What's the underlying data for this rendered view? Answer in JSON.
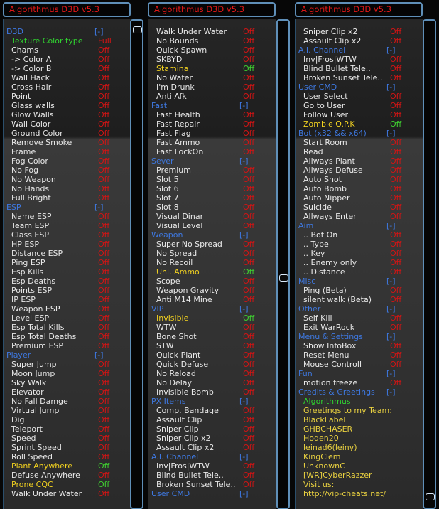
{
  "title": "Algorithmus D3D v5.3",
  "columns": [
    {
      "rows": [
        {
          "label": "D3D",
          "value": "[-]",
          "kind": "sec"
        },
        {
          "label": "Texture Color type",
          "value": "Full",
          "kind": "gr"
        },
        {
          "label": "Chams",
          "value": "Off"
        },
        {
          "label": "-> Color A",
          "value": "Off"
        },
        {
          "label": "-> Color B",
          "value": "Off"
        },
        {
          "label": "Wall Hack",
          "value": "Off"
        },
        {
          "label": "Cross Hair",
          "value": "Off"
        },
        {
          "label": "Point",
          "value": "Off"
        },
        {
          "label": "Glass walls",
          "value": "Off"
        },
        {
          "label": "Glow Walls",
          "value": "Off"
        },
        {
          "label": "Wall Color",
          "value": "Off"
        },
        {
          "label": "Ground Color",
          "value": "Off"
        },
        {
          "label": "Remove Smoke",
          "value": "Off"
        },
        {
          "label": "Frame",
          "value": "Off"
        },
        {
          "label": "Fog Color",
          "value": "Off"
        },
        {
          "label": "No Fog",
          "value": "Off"
        },
        {
          "label": "No Weapon",
          "value": "Off"
        },
        {
          "label": "No Hands",
          "value": "Off"
        },
        {
          "label": "Full Bright",
          "value": "Off"
        },
        {
          "label": "ESP",
          "value": "[-]",
          "kind": "sec"
        },
        {
          "label": "Name ESP",
          "value": "Off"
        },
        {
          "label": "Team ESP",
          "value": "Off"
        },
        {
          "label": "Class ESP",
          "value": "Off"
        },
        {
          "label": "HP ESP",
          "value": "Off"
        },
        {
          "label": "Distance ESP",
          "value": "Off"
        },
        {
          "label": "Ping ESP",
          "value": "Off"
        },
        {
          "label": "Esp Kills",
          "value": "Off"
        },
        {
          "label": "Esp Deaths",
          "value": "Off"
        },
        {
          "label": "Points ESP",
          "value": "Off"
        },
        {
          "label": "IP ESP",
          "value": "Off"
        },
        {
          "label": "Weapon ESP",
          "value": "Off"
        },
        {
          "label": "Level ESP",
          "value": "Off"
        },
        {
          "label": "Esp Total Kills",
          "value": "Off"
        },
        {
          "label": "Esp Total Deaths",
          "value": "Off"
        },
        {
          "label": "Premium ESP",
          "value": "Off"
        },
        {
          "label": "Player",
          "value": "[-]",
          "kind": "sec"
        },
        {
          "label": "Super Jump",
          "value": "Off"
        },
        {
          "label": "Moon Jump",
          "value": "Off"
        },
        {
          "label": "Sky Walk",
          "value": "Off"
        },
        {
          "label": "Elevator",
          "value": "Off"
        },
        {
          "label": "No Fall Damge",
          "value": "Off"
        },
        {
          "label": "Virtual Jump",
          "value": "Off"
        },
        {
          "label": "Dig",
          "value": "Off"
        },
        {
          "label": "Teleport",
          "value": "Off"
        },
        {
          "label": "Speed",
          "value": "Off"
        },
        {
          "label": "Sprint Speed",
          "value": "Off"
        },
        {
          "label": "Roll Speed",
          "value": "Off"
        },
        {
          "label": "Plant Anywhere",
          "value": "Off",
          "kind": "on"
        },
        {
          "label": "Defuse Anywhere",
          "value": "Off"
        },
        {
          "label": "Prone CQC",
          "value": "Off",
          "kind": "on"
        },
        {
          "label": "Walk Under Water",
          "value": "Off"
        }
      ]
    },
    {
      "rows": [
        {
          "label": "Walk Under Water",
          "value": "Off"
        },
        {
          "label": "No Bounds",
          "value": "Off"
        },
        {
          "label": "Quick Spawn",
          "value": "Off"
        },
        {
          "label": "SKBYD",
          "value": "Off"
        },
        {
          "label": "Stamina",
          "value": "Off",
          "kind": "on"
        },
        {
          "label": "No Water",
          "value": "Off"
        },
        {
          "label": "I'm Drunk",
          "value": "Off"
        },
        {
          "label": "Anti Afk",
          "value": "Off"
        },
        {
          "label": "Fast",
          "value": "[-]",
          "kind": "sec"
        },
        {
          "label": "Fast Health",
          "value": "Off"
        },
        {
          "label": "Fast Repair",
          "value": "Off"
        },
        {
          "label": "Fast Flag",
          "value": "Off"
        },
        {
          "label": "Fast Ammo",
          "value": "Off"
        },
        {
          "label": "Fast LockOn",
          "value": "Off"
        },
        {
          "label": "Sever",
          "value": "[-]",
          "kind": "sec"
        },
        {
          "label": "Premium",
          "value": "Off"
        },
        {
          "label": "Slot 5",
          "value": "Off"
        },
        {
          "label": "Slot 6",
          "value": "Off"
        },
        {
          "label": "Slot 7",
          "value": "Off"
        },
        {
          "label": "Slot 8",
          "value": "Off"
        },
        {
          "label": "Visual Dinar",
          "value": "Off"
        },
        {
          "label": "Visual Level",
          "value": "Off"
        },
        {
          "label": "Weapon",
          "value": "[-]",
          "kind": "sec"
        },
        {
          "label": "Super No Spread",
          "value": "Off"
        },
        {
          "label": "No Spread",
          "value": "Off"
        },
        {
          "label": "No Recoil",
          "value": "Off"
        },
        {
          "label": "Unl. Ammo",
          "value": "Off",
          "kind": "on"
        },
        {
          "label": "Scope",
          "value": "Off"
        },
        {
          "label": "Weapon Gravity",
          "value": "Off"
        },
        {
          "label": "Anti M14 Mine",
          "value": "Off"
        },
        {
          "label": "VIP",
          "value": "[-]",
          "kind": "sec"
        },
        {
          "label": "Invisible",
          "value": "Off",
          "kind": "on"
        },
        {
          "label": "WTW",
          "value": "Off"
        },
        {
          "label": "Bone Shot",
          "value": "Off"
        },
        {
          "label": "STW",
          "value": "Off"
        },
        {
          "label": "Quick Plant",
          "value": "Off"
        },
        {
          "label": "Quick Defuse",
          "value": "Off"
        },
        {
          "label": "No Reload",
          "value": "Off"
        },
        {
          "label": "No Delay",
          "value": "Off"
        },
        {
          "label": "Invisible Bomb",
          "value": "Off"
        },
        {
          "label": "PX Items",
          "value": "[-]",
          "kind": "sec"
        },
        {
          "label": "Comp. Bandage",
          "value": "Off"
        },
        {
          "label": "Assault Clip",
          "value": "Off"
        },
        {
          "label": "Sniper Clip",
          "value": "Off"
        },
        {
          "label": "Sniper Clip x2",
          "value": "Off"
        },
        {
          "label": "Assault Clip x2",
          "value": "Off"
        },
        {
          "label": "A.I. Channel",
          "value": "[-]",
          "kind": "sec"
        },
        {
          "label": "Inv|Fros|WTW",
          "value": "Off"
        },
        {
          "label": "Blind Bullet Tele..",
          "value": "Off"
        },
        {
          "label": "Broken Sunset Tele..",
          "value": "Off"
        },
        {
          "label": "User CMD",
          "value": "[-]",
          "kind": "sec"
        }
      ]
    },
    {
      "rows": [
        {
          "label": "Sniper Clip x2",
          "value": "Off"
        },
        {
          "label": "Assault Clip x2",
          "value": "Off"
        },
        {
          "label": "A.I. Channel",
          "value": "[-]",
          "kind": "sec"
        },
        {
          "label": "Inv|Fros|WTW",
          "value": "Off"
        },
        {
          "label": "Blind Bullet Tele..",
          "value": "Off"
        },
        {
          "label": "Broken Sunset Tele..",
          "value": "Off"
        },
        {
          "label": "User CMD",
          "value": "[-]",
          "kind": "sec"
        },
        {
          "label": "User Select",
          "value": "Off"
        },
        {
          "label": "Go to User",
          "value": "Off"
        },
        {
          "label": "Follow User",
          "value": "Off"
        },
        {
          "label": "Zombie O.P.K",
          "value": "Off",
          "kind": "on"
        },
        {
          "label": "Bot (x32 && x64)",
          "value": "[-]",
          "kind": "sec"
        },
        {
          "label": "Start Room",
          "value": "Off"
        },
        {
          "label": "Read",
          "value": "Off"
        },
        {
          "label": "Allways Plant",
          "value": "Off"
        },
        {
          "label": "Allways Defuse",
          "value": "Off"
        },
        {
          "label": "Auto Shot",
          "value": "Off"
        },
        {
          "label": "Auto Bomb",
          "value": "Off"
        },
        {
          "label": "Auto Nipper",
          "value": "Off"
        },
        {
          "label": "Suicide",
          "value": "Off"
        },
        {
          "label": "Allways Enter",
          "value": "Off"
        },
        {
          "label": "Aim",
          "value": "[-]",
          "kind": "sec"
        },
        {
          "label": ".. Bot On",
          "value": "Off"
        },
        {
          "label": ".. Type",
          "value": "Off"
        },
        {
          "label": ".. Key",
          "value": "Off"
        },
        {
          "label": ".. Enemy only",
          "value": "Off"
        },
        {
          "label": ".. Distance",
          "value": "Off"
        },
        {
          "label": "Misc",
          "value": "[-]",
          "kind": "sec"
        },
        {
          "label": "Ping (Beta)",
          "value": "Off"
        },
        {
          "label": "silent walk (Beta)",
          "value": "Off"
        },
        {
          "label": "Other",
          "value": "[-]",
          "kind": "sec"
        },
        {
          "label": "Self Kill",
          "value": "Off"
        },
        {
          "label": "Exit WarRock",
          "value": "Off"
        },
        {
          "label": "Menu & Settings",
          "value": "[-]",
          "kind": "sec"
        },
        {
          "label": "Show InfoBox",
          "value": "Off"
        },
        {
          "label": "Reset Menu",
          "value": "Off"
        },
        {
          "label": "Mouse Controll",
          "value": "Off"
        },
        {
          "label": "Fun",
          "value": "[-]",
          "kind": "sec"
        },
        {
          "label": "motion freeze",
          "value": "Off"
        },
        {
          "label": "Credits & Greetings",
          "value": "[-]",
          "kind": "sec"
        },
        {
          "label": "Algorithmus",
          "value": "",
          "kind": "gr"
        },
        {
          "label": "Greetings to my Team:",
          "value": "",
          "kind": "ye"
        },
        {
          "label": "BlackLabel",
          "value": "",
          "kind": "ye"
        },
        {
          "label": "GHBCHASER",
          "value": "",
          "kind": "ye"
        },
        {
          "label": "Hoden20",
          "value": "",
          "kind": "ye"
        },
        {
          "label": "leinad6(leiny)",
          "value": "",
          "kind": "ye"
        },
        {
          "label": "KingClem",
          "value": "",
          "kind": "ye"
        },
        {
          "label": "UnknownC",
          "value": "",
          "kind": "ye"
        },
        {
          "label": "[WR]CyberRazzer",
          "value": "",
          "kind": "ye"
        },
        {
          "label": "Visit us:",
          "value": "",
          "kind": "ye"
        },
        {
          "label": "http://vip-cheats.net/",
          "value": "",
          "kind": "ye"
        }
      ]
    }
  ],
  "colors": {
    "border": "#5f8fb8",
    "section": "#3e78e0",
    "off": "#d41414",
    "title": "#e01818"
  }
}
